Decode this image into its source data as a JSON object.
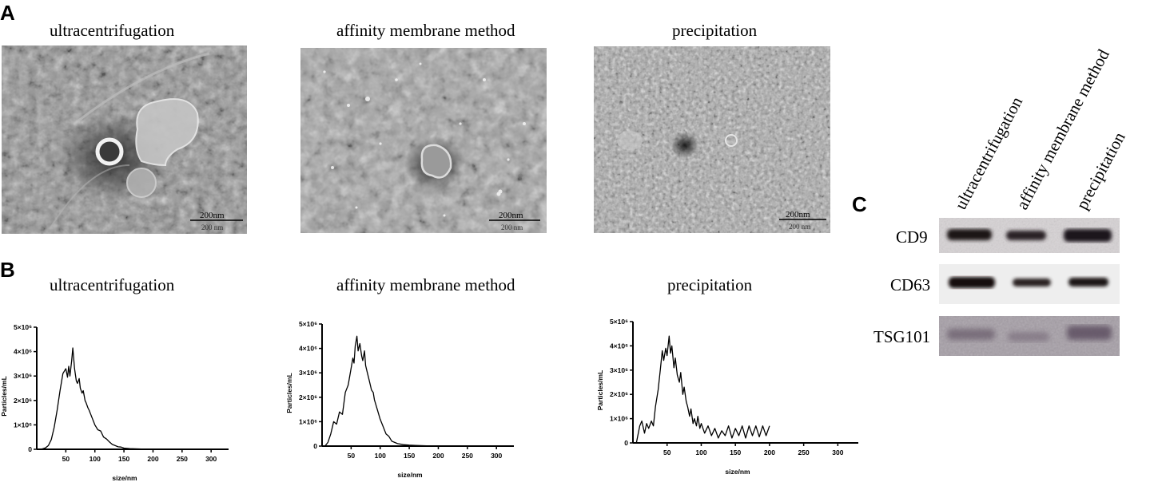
{
  "panels": {
    "a": {
      "letter": "A"
    },
    "b": {
      "letter": "B"
    },
    "c": {
      "letter": "C"
    }
  },
  "methods": [
    "ultracentrifugation",
    "affinity membrane method",
    "precipitation"
  ],
  "tem": {
    "scale_bar_label": "200nm",
    "scale_bar_sub": "200 nm"
  },
  "chart_data": [
    {
      "type": "line",
      "title": "ultracentrifugation",
      "xlabel": "size/nm",
      "ylabel": "Particles/mL",
      "xlim": [
        0,
        330
      ],
      "ylim": [
        0,
        5000000
      ],
      "xticks": [
        50,
        100,
        150,
        200,
        250,
        300
      ],
      "yticks": [
        0,
        1000000,
        2000000,
        3000000,
        4000000,
        5000000
      ],
      "ytick_labels": [
        "0",
        "1×10⁶",
        "2×10⁶",
        "3×10⁶",
        "4×10⁶",
        "5×10⁶"
      ],
      "series": [
        {
          "x": [
            5,
            10,
            15,
            20,
            25,
            30,
            35,
            40,
            45,
            50,
            53,
            55,
            57,
            60,
            62,
            65,
            68,
            70,
            73,
            75,
            78,
            80,
            83,
            85,
            88,
            90,
            95,
            100,
            105,
            110,
            115,
            120,
            125,
            130,
            135,
            140,
            145,
            150,
            160,
            170,
            180,
            190,
            200,
            210
          ],
          "y": [
            0,
            20000,
            60000,
            150000,
            400000,
            900000,
            1600000,
            2400000,
            3100000,
            3300000,
            2950000,
            3400000,
            3000000,
            3600000,
            4150000,
            3300000,
            2800000,
            2700000,
            2900000,
            2500000,
            2300000,
            2400000,
            2000000,
            1900000,
            1700000,
            1600000,
            1300000,
            1000000,
            800000,
            750000,
            500000,
            420000,
            300000,
            200000,
            150000,
            100000,
            90000,
            50000,
            30000,
            20000,
            10000,
            5000,
            0,
            0
          ]
        }
      ]
    },
    {
      "type": "line",
      "title": "affinity membrane method",
      "xlabel": "size/nm",
      "ylabel": "Particles/mL",
      "xlim": [
        0,
        330
      ],
      "ylim": [
        0,
        5000000
      ],
      "xticks": [
        50,
        100,
        150,
        200,
        250,
        300
      ],
      "yticks": [
        0,
        1000000,
        2000000,
        3000000,
        4000000,
        5000000
      ],
      "ytick_labels": [
        "0",
        "1×10⁶",
        "2×10⁶",
        "3×10⁶",
        "4×10⁶",
        "5×10⁶"
      ],
      "series": [
        {
          "x": [
            5,
            10,
            15,
            20,
            25,
            30,
            35,
            40,
            45,
            50,
            53,
            55,
            57,
            60,
            62,
            65,
            68,
            70,
            73,
            75,
            78,
            80,
            83,
            85,
            88,
            90,
            95,
            100,
            105,
            110,
            115,
            120,
            125,
            130,
            140,
            150,
            160,
            170,
            180,
            190,
            200
          ],
          "y": [
            0,
            150000,
            500000,
            1000000,
            900000,
            1400000,
            1300000,
            2200000,
            2500000,
            3200000,
            3600000,
            3400000,
            4100000,
            4500000,
            3900000,
            4200000,
            3700000,
            3500000,
            3900000,
            3300000,
            3000000,
            2800000,
            2500000,
            2300000,
            2200000,
            1900000,
            1500000,
            1100000,
            800000,
            500000,
            400000,
            200000,
            150000,
            100000,
            60000,
            40000,
            30000,
            20000,
            10000,
            5000,
            0
          ]
        }
      ]
    },
    {
      "type": "line",
      "title": "precipitation",
      "xlabel": "size/nm",
      "ylabel": "Particles/mL",
      "xlim": [
        0,
        330
      ],
      "ylim": [
        0,
        5000000
      ],
      "xticks": [
        50,
        100,
        150,
        200,
        250,
        300
      ],
      "yticks": [
        0,
        1000000,
        2000000,
        3000000,
        4000000,
        5000000
      ],
      "ytick_labels": [
        "0",
        "1×10⁶",
        "2×10⁶",
        "3×10⁶",
        "4×10⁶",
        "5×10⁶"
      ],
      "series": [
        {
          "x": [
            5,
            10,
            13,
            17,
            20,
            23,
            27,
            30,
            33,
            37,
            40,
            43,
            45,
            48,
            50,
            53,
            55,
            57,
            60,
            62,
            65,
            68,
            70,
            73,
            75,
            78,
            80,
            83,
            85,
            88,
            90,
            93,
            95,
            98,
            100,
            105,
            110,
            115,
            120,
            125,
            130,
            135,
            140,
            145,
            150,
            155,
            160,
            165,
            170,
            175,
            180,
            185,
            190,
            195,
            200
          ],
          "y": [
            0,
            700000,
            900000,
            400000,
            800000,
            600000,
            900000,
            700000,
            1500000,
            2200000,
            3000000,
            3800000,
            3400000,
            3900000,
            3600000,
            4400000,
            3700000,
            4000000,
            3100000,
            3500000,
            2800000,
            2500000,
            2900000,
            2000000,
            2300000,
            1700000,
            1500000,
            1100000,
            1400000,
            800000,
            1000000,
            700000,
            1100000,
            600000,
            800000,
            400000,
            700000,
            300000,
            600000,
            200000,
            500000,
            300000,
            700000,
            200000,
            600000,
            300000,
            700000,
            200000,
            700000,
            300000,
            700000,
            250000,
            700000,
            300000,
            700000
          ]
        }
      ]
    }
  ],
  "western_blot": {
    "rows": [
      "CD9",
      "CD63",
      "TSG101"
    ]
  }
}
